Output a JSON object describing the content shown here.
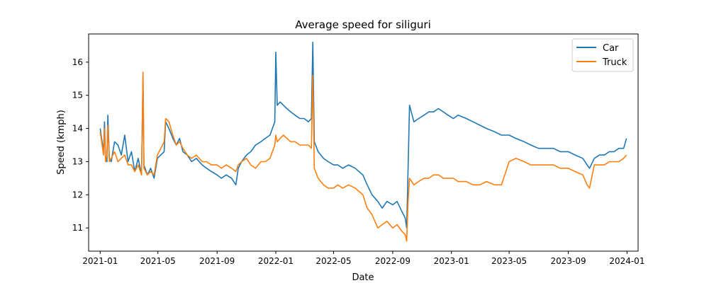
{
  "chart_data": {
    "type": "line",
    "title": "Average speed for siliguri",
    "xlabel": "Date",
    "ylabel": "Speed (kmph)",
    "x_range": [
      "2020-12-08",
      "2024-01-24"
    ],
    "ylim": [
      10.3,
      16.85
    ],
    "x_ticks": [
      {
        "date": "2021-01-01",
        "label": "2021-01"
      },
      {
        "date": "2021-05-01",
        "label": "2021-05"
      },
      {
        "date": "2021-09-01",
        "label": "2021-09"
      },
      {
        "date": "2022-01-01",
        "label": "2022-01"
      },
      {
        "date": "2022-05-01",
        "label": "2022-05"
      },
      {
        "date": "2022-09-01",
        "label": "2022-09"
      },
      {
        "date": "2023-01-01",
        "label": "2023-01"
      },
      {
        "date": "2023-05-01",
        "label": "2023-05"
      },
      {
        "date": "2023-09-01",
        "label": "2023-09"
      },
      {
        "date": "2024-01-01",
        "label": "2024-01"
      }
    ],
    "y_ticks": [
      {
        "value": 11,
        "label": "11"
      },
      {
        "value": 12,
        "label": "12"
      },
      {
        "value": 13,
        "label": "13"
      },
      {
        "value": 14,
        "label": "14"
      },
      {
        "value": 15,
        "label": "15"
      },
      {
        "value": 16,
        "label": "16"
      }
    ],
    "grid": false,
    "legend_position": "top-right",
    "series": [
      {
        "name": "Car",
        "color": "#1f77b4",
        "points": [
          [
            "2021-01-01",
            14.0
          ],
          [
            "2021-01-04",
            13.7
          ],
          [
            "2021-01-08",
            13.3
          ],
          [
            "2021-01-10",
            14.2
          ],
          [
            "2021-01-12",
            13.1
          ],
          [
            "2021-01-15",
            13.0
          ],
          [
            "2021-01-17",
            14.4
          ],
          [
            "2021-01-20",
            13.1
          ],
          [
            "2021-01-24",
            13.0
          ],
          [
            "2021-01-31",
            13.6
          ],
          [
            "2021-02-07",
            13.5
          ],
          [
            "2021-02-14",
            13.2
          ],
          [
            "2021-02-21",
            13.8
          ],
          [
            "2021-02-28",
            13.0
          ],
          [
            "2021-03-07",
            13.3
          ],
          [
            "2021-03-14",
            12.7
          ],
          [
            "2021-03-21",
            13.1
          ],
          [
            "2021-03-28",
            12.6
          ],
          [
            "2021-03-31",
            15.6
          ],
          [
            "2021-04-02",
            12.9
          ],
          [
            "2021-04-09",
            12.6
          ],
          [
            "2021-04-16",
            12.8
          ],
          [
            "2021-04-23",
            12.5
          ],
          [
            "2021-04-30",
            13.1
          ],
          [
            "2021-05-07",
            13.2
          ],
          [
            "2021-05-14",
            13.3
          ],
          [
            "2021-05-17",
            14.2
          ],
          [
            "2021-05-24",
            14.0
          ],
          [
            "2021-06-01",
            13.7
          ],
          [
            "2021-06-08",
            13.5
          ],
          [
            "2021-06-15",
            13.7
          ],
          [
            "2021-06-22",
            13.3
          ],
          [
            "2021-07-01",
            13.2
          ],
          [
            "2021-07-10",
            13.0
          ],
          [
            "2021-07-20",
            13.1
          ],
          [
            "2021-08-01",
            12.9
          ],
          [
            "2021-08-10",
            12.8
          ],
          [
            "2021-08-20",
            12.7
          ],
          [
            "2021-09-01",
            12.6
          ],
          [
            "2021-09-10",
            12.5
          ],
          [
            "2021-09-20",
            12.6
          ],
          [
            "2021-10-01",
            12.5
          ],
          [
            "2021-10-10",
            12.3
          ],
          [
            "2021-10-15",
            12.8
          ],
          [
            "2021-10-22",
            13.0
          ],
          [
            "2021-11-01",
            13.2
          ],
          [
            "2021-11-10",
            13.3
          ],
          [
            "2021-11-20",
            13.5
          ],
          [
            "2021-12-01",
            13.6
          ],
          [
            "2021-12-10",
            13.7
          ],
          [
            "2021-12-20",
            13.8
          ],
          [
            "2021-12-30",
            14.2
          ],
          [
            "2022-01-01",
            16.3
          ],
          [
            "2022-01-04",
            14.7
          ],
          [
            "2022-01-10",
            14.8
          ],
          [
            "2022-01-17",
            14.7
          ],
          [
            "2022-01-24",
            14.6
          ],
          [
            "2022-02-01",
            14.5
          ],
          [
            "2022-02-10",
            14.4
          ],
          [
            "2022-02-20",
            14.3
          ],
          [
            "2022-03-01",
            14.3
          ],
          [
            "2022-03-10",
            14.2
          ],
          [
            "2022-03-16",
            14.3
          ],
          [
            "2022-03-19",
            16.6
          ],
          [
            "2022-03-22",
            13.6
          ],
          [
            "2022-03-30",
            13.3
          ],
          [
            "2022-04-10",
            13.1
          ],
          [
            "2022-04-20",
            13.0
          ],
          [
            "2022-05-01",
            12.9
          ],
          [
            "2022-05-10",
            12.9
          ],
          [
            "2022-05-20",
            12.8
          ],
          [
            "2022-06-01",
            12.9
          ],
          [
            "2022-06-15",
            12.8
          ],
          [
            "2022-07-01",
            12.6
          ],
          [
            "2022-07-10",
            12.3
          ],
          [
            "2022-07-20",
            12.0
          ],
          [
            "2022-08-01",
            11.8
          ],
          [
            "2022-08-10",
            11.6
          ],
          [
            "2022-08-20",
            11.8
          ],
          [
            "2022-09-01",
            11.7
          ],
          [
            "2022-09-10",
            11.8
          ],
          [
            "2022-09-20",
            11.5
          ],
          [
            "2022-09-27",
            11.3
          ],
          [
            "2022-09-30",
            11.0
          ],
          [
            "2022-10-03",
            12.8
          ],
          [
            "2022-10-06",
            14.7
          ],
          [
            "2022-10-15",
            14.2
          ],
          [
            "2022-10-25",
            14.3
          ],
          [
            "2022-11-05",
            14.4
          ],
          [
            "2022-11-15",
            14.5
          ],
          [
            "2022-11-25",
            14.5
          ],
          [
            "2022-12-05",
            14.6
          ],
          [
            "2022-12-15",
            14.5
          ],
          [
            "2022-12-25",
            14.4
          ],
          [
            "2023-01-05",
            14.3
          ],
          [
            "2023-01-15",
            14.4
          ],
          [
            "2023-02-01",
            14.3
          ],
          [
            "2023-02-15",
            14.2
          ],
          [
            "2023-03-01",
            14.1
          ],
          [
            "2023-03-15",
            14.0
          ],
          [
            "2023-04-01",
            13.9
          ],
          [
            "2023-04-15",
            13.8
          ],
          [
            "2023-05-01",
            13.8
          ],
          [
            "2023-05-15",
            13.7
          ],
          [
            "2023-06-01",
            13.6
          ],
          [
            "2023-06-15",
            13.5
          ],
          [
            "2023-07-01",
            13.4
          ],
          [
            "2023-07-15",
            13.4
          ],
          [
            "2023-08-01",
            13.4
          ],
          [
            "2023-08-15",
            13.3
          ],
          [
            "2023-09-01",
            13.3
          ],
          [
            "2023-09-15",
            13.2
          ],
          [
            "2023-10-01",
            13.1
          ],
          [
            "2023-10-10",
            12.9
          ],
          [
            "2023-10-15",
            12.8
          ],
          [
            "2023-10-25",
            13.1
          ],
          [
            "2023-11-05",
            13.2
          ],
          [
            "2023-11-15",
            13.2
          ],
          [
            "2023-11-25",
            13.3
          ],
          [
            "2023-12-05",
            13.3
          ],
          [
            "2023-12-15",
            13.4
          ],
          [
            "2023-12-25",
            13.4
          ],
          [
            "2023-12-31",
            13.7
          ]
        ]
      },
      {
        "name": "Truck",
        "color": "#ff7f0e",
        "points": [
          [
            "2021-01-01",
            13.9
          ],
          [
            "2021-01-04",
            13.6
          ],
          [
            "2021-01-08",
            13.2
          ],
          [
            "2021-01-10",
            14.0
          ],
          [
            "2021-01-12",
            13.0
          ],
          [
            "2021-01-15",
            13.2
          ],
          [
            "2021-01-17",
            14.1
          ],
          [
            "2021-01-20",
            13.0
          ],
          [
            "2021-01-24",
            13.1
          ],
          [
            "2021-01-31",
            13.3
          ],
          [
            "2021-02-07",
            13.0
          ],
          [
            "2021-02-14",
            13.1
          ],
          [
            "2021-02-21",
            13.2
          ],
          [
            "2021-02-28",
            12.9
          ],
          [
            "2021-03-07",
            12.9
          ],
          [
            "2021-03-14",
            12.7
          ],
          [
            "2021-03-21",
            12.9
          ],
          [
            "2021-03-28",
            12.6
          ],
          [
            "2021-03-31",
            15.7
          ],
          [
            "2021-04-02",
            12.8
          ],
          [
            "2021-04-09",
            12.6
          ],
          [
            "2021-04-16",
            12.7
          ],
          [
            "2021-04-23",
            12.6
          ],
          [
            "2021-04-30",
            13.2
          ],
          [
            "2021-05-07",
            13.4
          ],
          [
            "2021-05-14",
            13.6
          ],
          [
            "2021-05-17",
            14.3
          ],
          [
            "2021-05-24",
            14.2
          ],
          [
            "2021-06-01",
            13.8
          ],
          [
            "2021-06-08",
            13.5
          ],
          [
            "2021-06-15",
            13.6
          ],
          [
            "2021-06-22",
            13.4
          ],
          [
            "2021-07-01",
            13.2
          ],
          [
            "2021-07-10",
            13.1
          ],
          [
            "2021-07-20",
            13.2
          ],
          [
            "2021-08-01",
            13.0
          ],
          [
            "2021-08-10",
            13.0
          ],
          [
            "2021-08-20",
            12.9
          ],
          [
            "2021-09-01",
            12.9
          ],
          [
            "2021-09-10",
            12.8
          ],
          [
            "2021-09-20",
            12.9
          ],
          [
            "2021-10-01",
            12.8
          ],
          [
            "2021-10-10",
            12.7
          ],
          [
            "2021-10-15",
            12.9
          ],
          [
            "2021-10-22",
            13.0
          ],
          [
            "2021-11-01",
            13.1
          ],
          [
            "2021-11-10",
            12.9
          ],
          [
            "2021-11-20",
            12.8
          ],
          [
            "2021-12-01",
            13.0
          ],
          [
            "2021-12-10",
            13.0
          ],
          [
            "2021-12-20",
            13.1
          ],
          [
            "2021-12-30",
            13.5
          ],
          [
            "2022-01-01",
            13.8
          ],
          [
            "2022-01-04",
            13.6
          ],
          [
            "2022-01-10",
            13.7
          ],
          [
            "2022-01-17",
            13.8
          ],
          [
            "2022-01-24",
            13.7
          ],
          [
            "2022-02-01",
            13.6
          ],
          [
            "2022-02-10",
            13.6
          ],
          [
            "2022-02-20",
            13.5
          ],
          [
            "2022-03-01",
            13.5
          ],
          [
            "2022-03-10",
            13.5
          ],
          [
            "2022-03-16",
            13.4
          ],
          [
            "2022-03-19",
            15.6
          ],
          [
            "2022-03-22",
            12.8
          ],
          [
            "2022-03-30",
            12.5
          ],
          [
            "2022-04-10",
            12.3
          ],
          [
            "2022-04-20",
            12.2
          ],
          [
            "2022-05-01",
            12.2
          ],
          [
            "2022-05-10",
            12.3
          ],
          [
            "2022-05-20",
            12.2
          ],
          [
            "2022-06-01",
            12.3
          ],
          [
            "2022-06-15",
            12.2
          ],
          [
            "2022-07-01",
            12.0
          ],
          [
            "2022-07-10",
            11.6
          ],
          [
            "2022-07-20",
            11.4
          ],
          [
            "2022-08-01",
            11.0
          ],
          [
            "2022-08-10",
            11.1
          ],
          [
            "2022-08-20",
            11.2
          ],
          [
            "2022-09-01",
            11.0
          ],
          [
            "2022-09-10",
            11.1
          ],
          [
            "2022-09-20",
            10.9
          ],
          [
            "2022-09-27",
            10.8
          ],
          [
            "2022-09-30",
            10.6
          ],
          [
            "2022-10-03",
            11.8
          ],
          [
            "2022-10-06",
            12.5
          ],
          [
            "2022-10-15",
            12.3
          ],
          [
            "2022-10-25",
            12.4
          ],
          [
            "2022-11-05",
            12.5
          ],
          [
            "2022-11-15",
            12.5
          ],
          [
            "2022-11-25",
            12.6
          ],
          [
            "2022-12-05",
            12.6
          ],
          [
            "2022-12-15",
            12.5
          ],
          [
            "2022-12-25",
            12.5
          ],
          [
            "2023-01-05",
            12.5
          ],
          [
            "2023-01-15",
            12.4
          ],
          [
            "2023-02-01",
            12.4
          ],
          [
            "2023-02-15",
            12.3
          ],
          [
            "2023-03-01",
            12.3
          ],
          [
            "2023-03-15",
            12.4
          ],
          [
            "2023-04-01",
            12.3
          ],
          [
            "2023-04-15",
            12.3
          ],
          [
            "2023-05-01",
            13.0
          ],
          [
            "2023-05-15",
            13.1
          ],
          [
            "2023-06-01",
            13.0
          ],
          [
            "2023-06-15",
            12.9
          ],
          [
            "2023-07-01",
            12.9
          ],
          [
            "2023-07-15",
            12.9
          ],
          [
            "2023-08-01",
            12.9
          ],
          [
            "2023-08-15",
            12.8
          ],
          [
            "2023-09-01",
            12.8
          ],
          [
            "2023-09-15",
            12.7
          ],
          [
            "2023-10-01",
            12.6
          ],
          [
            "2023-10-10",
            12.3
          ],
          [
            "2023-10-15",
            12.2
          ],
          [
            "2023-10-25",
            12.9
          ],
          [
            "2023-11-05",
            12.9
          ],
          [
            "2023-11-15",
            12.9
          ],
          [
            "2023-11-25",
            13.0
          ],
          [
            "2023-12-05",
            13.0
          ],
          [
            "2023-12-15",
            13.0
          ],
          [
            "2023-12-25",
            13.1
          ],
          [
            "2023-12-31",
            13.2
          ]
        ]
      }
    ]
  }
}
